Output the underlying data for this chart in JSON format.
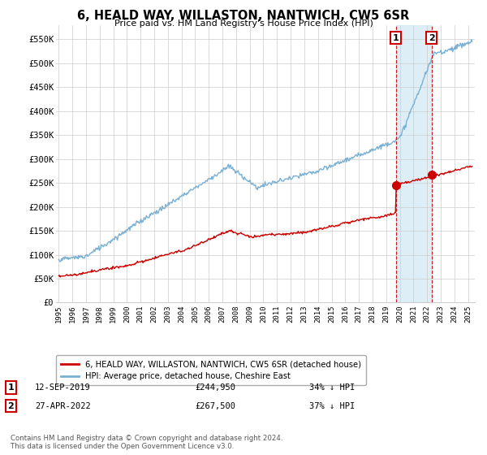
{
  "title": "6, HEALD WAY, WILLASTON, NANTWICH, CW5 6SR",
  "subtitle": "Price paid vs. HM Land Registry's House Price Index (HPI)",
  "ylabel_ticks": [
    "£0",
    "£50K",
    "£100K",
    "£150K",
    "£200K",
    "£250K",
    "£300K",
    "£350K",
    "£400K",
    "£450K",
    "£500K",
    "£550K"
  ],
  "ytick_values": [
    0,
    50000,
    100000,
    150000,
    200000,
    250000,
    300000,
    350000,
    400000,
    450000,
    500000,
    550000
  ],
  "ylim": [
    0,
    580000
  ],
  "xlim_start": 1994.8,
  "xlim_end": 2025.5,
  "x_ticks": [
    1995,
    1996,
    1997,
    1998,
    1999,
    2000,
    2001,
    2002,
    2003,
    2004,
    2005,
    2006,
    2007,
    2008,
    2009,
    2010,
    2011,
    2012,
    2013,
    2014,
    2015,
    2016,
    2017,
    2018,
    2019,
    2020,
    2021,
    2022,
    2023,
    2024,
    2025
  ],
  "hpi_color": "#7ab0d4",
  "hpi_fill_color": "#d0e8f5",
  "price_color": "#cc0000",
  "marker1_date": 2019.7,
  "marker1_price": 244950,
  "marker2_date": 2022.33,
  "marker2_price": 267500,
  "legend_label_price": "6, HEALD WAY, WILLASTON, NANTWICH, CW5 6SR (detached house)",
  "legend_label_hpi": "HPI: Average price, detached house, Cheshire East",
  "annotation1_text": "12-SEP-2019",
  "annotation1_price_text": "£244,950",
  "annotation1_hpi_text": "34% ↓ HPI",
  "annotation2_text": "27-APR-2022",
  "annotation2_price_text": "£267,500",
  "annotation2_hpi_text": "37% ↓ HPI",
  "footer_text": "Contains HM Land Registry data © Crown copyright and database right 2024.\nThis data is licensed under the Open Government Licence v3.0.",
  "bg_color": "#ffffff",
  "grid_color": "#cccccc"
}
